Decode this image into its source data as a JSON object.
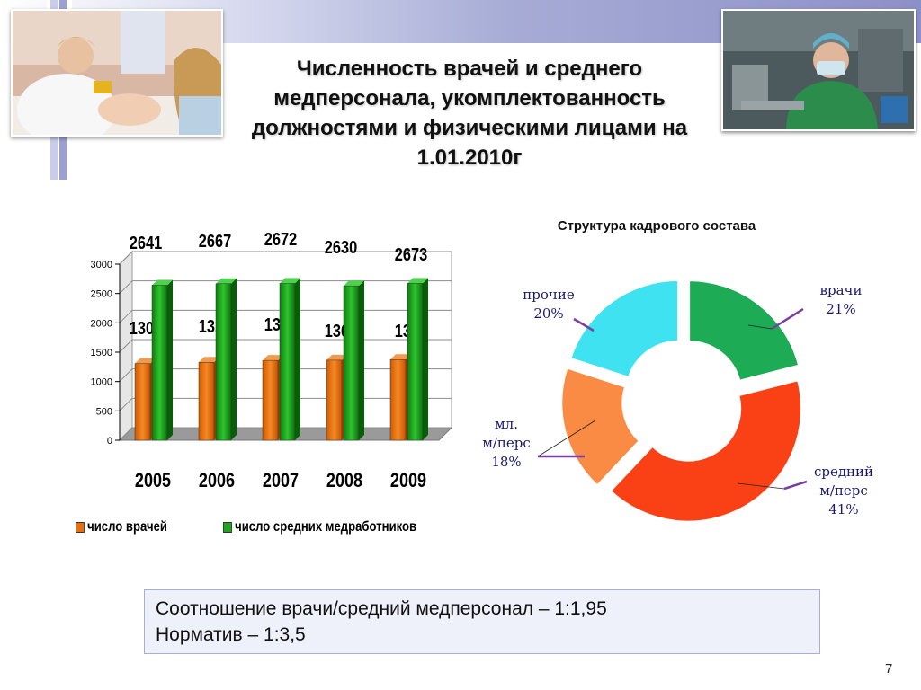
{
  "slide": {
    "title": "Численность врачей и среднего медперсонала, укомплектованность должностями и физическими лицами на 1.01.2010г",
    "page_number": "7",
    "note_line1": "Соотношение врачи/средний медперсонал – 1:1,95",
    "note_line2": "Норматив – 1:3,5",
    "photo_left": "doctor-with-patient-photo",
    "photo_right": "surgeon-photo"
  },
  "chart_data": [
    {
      "type": "bar",
      "categories": [
        "2005",
        "2006",
        "2007",
        "2008",
        "2009"
      ],
      "series": [
        {
          "name": "число врачей",
          "values": [
            1306,
            1328,
            1360,
            1364,
            1373
          ],
          "color": "#e8700a"
        },
        {
          "name": "число средних медработников",
          "values": [
            2641,
            2667,
            2672,
            2630,
            2673
          ],
          "color": "#1ea51e"
        }
      ],
      "yticks": [
        "0",
        "500",
        "1000",
        "1500",
        "2000",
        "2500",
        "3000"
      ],
      "ylim": [
        0,
        3000
      ],
      "grid": true,
      "legend": "bottom"
    },
    {
      "type": "pie",
      "title": "Структура кадрового состава",
      "slices": [
        {
          "label_lines": [
            "врачи",
            "21%"
          ],
          "value": 21,
          "color": "#1dab55"
        },
        {
          "label_lines": [
            "средний",
            "м/перс",
            "41%"
          ],
          "value": 41,
          "color": "#fa4116"
        },
        {
          "label_lines": [
            "мл.",
            "м/перс",
            "18%"
          ],
          "value": 18,
          "color": "#f98b44"
        },
        {
          "label_lines": [
            "прочие",
            "20%"
          ],
          "value": 20,
          "color": "#3fe2f0"
        }
      ],
      "style": "exploded doughnut"
    }
  ]
}
